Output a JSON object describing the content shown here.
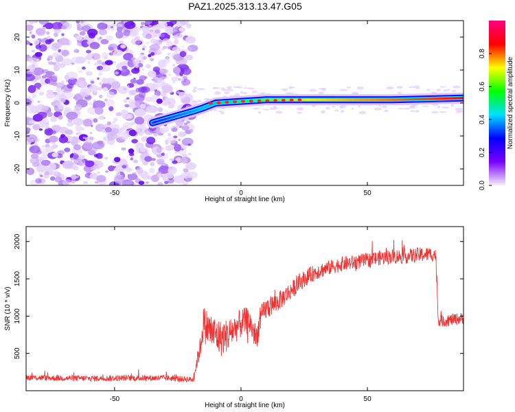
{
  "title": "PAZ1.2025.313.13.47.G05",
  "chart_data": [
    {
      "type": "heatmap",
      "title": "PAZ1.2025.313.13.47.G05",
      "xlabel": "Height of straight line (km)",
      "ylabel": "Frequency (Hz)",
      "xlim": [
        -85,
        88
      ],
      "ylim": [
        -25,
        25
      ],
      "xticks": [
        -50,
        0,
        50
      ],
      "yticks": [
        -20,
        -10,
        0,
        10,
        20
      ],
      "noise_region_x": [
        -85,
        -19
      ],
      "ridge": [
        {
          "x": -35,
          "y": -6
        },
        {
          "x": -19,
          "y": -2.5
        },
        {
          "x": -15,
          "y": -1.5
        },
        {
          "x": -10,
          "y": 0
        },
        {
          "x": 0,
          "y": 0.5
        },
        {
          "x": 10,
          "y": 1
        },
        {
          "x": 30,
          "y": 1
        },
        {
          "x": 60,
          "y": 1
        },
        {
          "x": 88,
          "y": 1.5
        }
      ],
      "colorbar": {
        "label": "Normalized spectral amplitude",
        "ticks": [
          "0.0",
          "0.2",
          "0.4",
          "0.6",
          "0.8"
        ],
        "range": [
          0,
          1
        ],
        "colors": [
          "#f7f0fb",
          "#7b00ff",
          "#0000ff",
          "#00e0ff",
          "#00ff00",
          "#ffff00",
          "#ff0000",
          "#ff0080"
        ]
      }
    },
    {
      "type": "line",
      "xlabel": "Height of straight line (km)",
      "ylabel": "SNR (10 * v/v)",
      "xlim": [
        -85,
        88
      ],
      "ylim": [
        0,
        2200
      ],
      "xticks": [
        -50,
        0,
        50
      ],
      "yticks": [
        500,
        1000,
        1500,
        2000
      ],
      "color": "#ee3333",
      "series": [
        {
          "name": "SNR",
          "x": [
            -85,
            -75,
            -60,
            -45,
            -30,
            -19,
            -16,
            -15,
            -12,
            -8,
            -5,
            -2,
            0,
            3,
            6,
            8,
            10,
            15,
            20,
            25,
            30,
            35,
            40,
            45,
            50,
            55,
            60,
            65,
            70,
            75,
            77,
            78,
            80,
            85,
            88
          ],
          "y": [
            180,
            170,
            165,
            170,
            170,
            150,
            600,
            900,
            800,
            700,
            750,
            850,
            900,
            950,
            700,
            1000,
            1100,
            1200,
            1350,
            1500,
            1600,
            1650,
            1700,
            1720,
            1750,
            1780,
            1800,
            1800,
            1820,
            1830,
            1830,
            950,
            930,
            960,
            970
          ],
          "noise": [
            40,
            40,
            40,
            40,
            40,
            40,
            150,
            250,
            250,
            250,
            220,
            200,
            200,
            180,
            180,
            150,
            150,
            130,
            120,
            110,
            110,
            100,
            100,
            100,
            100,
            100,
            100,
            100,
            100,
            100,
            100,
            80,
            80,
            80,
            80
          ]
        }
      ]
    }
  ]
}
